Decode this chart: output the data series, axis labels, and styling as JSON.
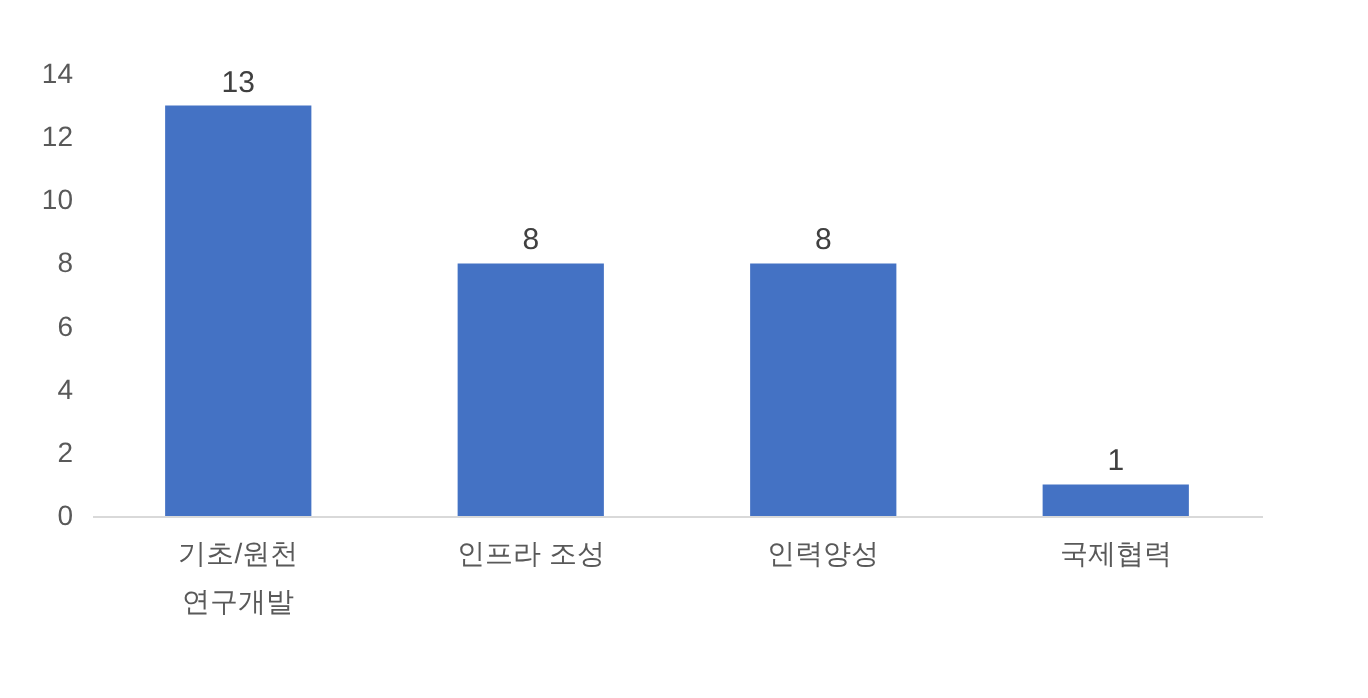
{
  "chart_data": {
    "type": "bar",
    "categories": [
      "기초/원천\n연구개발",
      "인프라 조성",
      "인력양성",
      "국제협력"
    ],
    "values": [
      13,
      8,
      8,
      1
    ],
    "color": "#4472c4",
    "ylim": [
      0,
      14
    ],
    "yticks": [
      0,
      2,
      4,
      6,
      8,
      10,
      12,
      14
    ],
    "grid": false,
    "data_labels": true
  }
}
